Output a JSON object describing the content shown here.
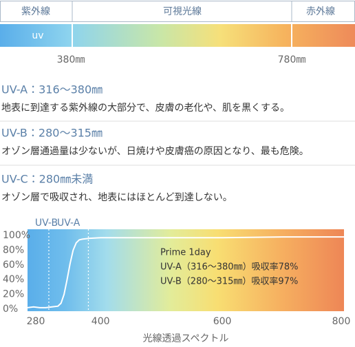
{
  "spectrum_bar": {
    "labels": [
      "紫外線",
      "可視光線",
      "赤外線"
    ],
    "uv": "uv",
    "marks": [
      "380㎜",
      "780㎜"
    ]
  },
  "sections": [
    {
      "heading": "UV-A：316〜380㎜",
      "text": "地表に到達する紫外線の大部分で、皮膚の老化や、肌を黒くする。"
    },
    {
      "heading": "UV-B：280〜315㎜",
      "text": "オゾン層通過量は少ないが、日焼けや皮膚癌の原因となり、最も危険。"
    },
    {
      "heading": "UV-C：280㎜未満",
      "text": "オゾン層で吸収され、地表にはほとんど到達しない。"
    }
  ],
  "chart_data": {
    "type": "line",
    "x_label": "光線透過スペクトル",
    "x": [
      280,
      290,
      300,
      310,
      320,
      330,
      335,
      340,
      345,
      350,
      355,
      360,
      365,
      370,
      380,
      400,
      500,
      600,
      700,
      800
    ],
    "values": [
      2,
      3,
      2,
      2,
      3,
      4,
      8,
      20,
      40,
      62,
      80,
      90,
      94,
      95,
      96,
      97,
      97,
      97,
      98,
      98
    ],
    "color": "#ffffff",
    "xlim": [
      280,
      800
    ],
    "xticks": [
      280,
      400,
      600,
      800
    ],
    "ylim": [
      0,
      100
    ],
    "yticks": [
      {
        "value": 0,
        "label": "0%"
      },
      {
        "value": 20,
        "label": "20%"
      },
      {
        "value": 40,
        "label": "40%"
      },
      {
        "value": 60,
        "label": "60%"
      },
      {
        "value": 80,
        "label": "80%"
      },
      {
        "value": 100,
        "label": "100%"
      }
    ],
    "regions": [
      {
        "label": "UV-B",
        "range": [
          280,
          315
        ]
      },
      {
        "label": "UV-A",
        "range": [
          315,
          380
        ]
      }
    ],
    "annotations": [
      "Prime 1day",
      "UV-A（316〜380㎜）吸収率78%",
      "UV-B（280〜315㎜）吸収率97%"
    ]
  }
}
